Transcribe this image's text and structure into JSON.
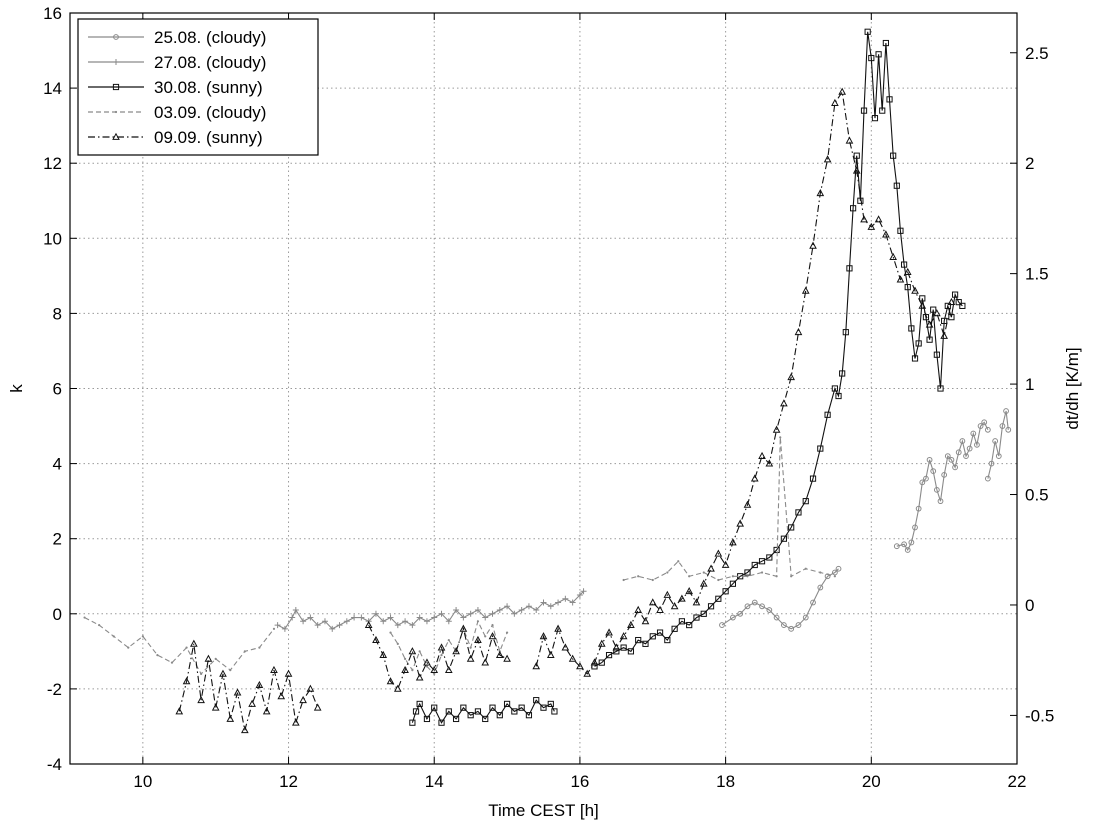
{
  "chart_data": {
    "type": "line",
    "title": "",
    "xlabel": "Time CEST [h]",
    "ylabel": "k",
    "y2label": "dt/dh [K/m]",
    "xlim": [
      9,
      22
    ],
    "ylim": [
      -4,
      16
    ],
    "y2lim": [
      -0.72,
      2.68
    ],
    "xticks": [
      10,
      12,
      14,
      16,
      18,
      20,
      22
    ],
    "yticks": [
      -4,
      -2,
      0,
      2,
      4,
      6,
      8,
      10,
      12,
      14,
      16
    ],
    "y2ticks": [
      -0.5,
      0,
      0.5,
      1,
      1.5,
      2,
      2.5
    ],
    "grid": true,
    "legend_position": "top-left",
    "series": [
      {
        "name": "25.08. (cloudy)",
        "color": "#8a8a8a",
        "marker": "circle",
        "dash": "solid",
        "x": [
          17.95,
          18.1,
          18.2,
          18.3,
          18.4,
          18.5,
          18.6,
          18.7,
          18.8,
          18.9,
          19.0,
          19.1,
          19.2,
          19.3,
          19.4,
          19.5,
          19.55,
          20.25,
          20.35,
          20.45,
          20.5,
          20.55,
          20.6,
          20.65,
          20.7,
          20.75,
          20.8,
          20.85,
          20.9,
          20.95,
          21.0,
          21.05,
          21.1,
          21.15,
          21.2,
          21.25,
          21.3,
          21.35,
          21.4,
          21.45,
          21.5,
          21.55,
          21.6,
          21.55,
          21.6,
          21.65,
          21.7,
          21.75,
          21.8,
          21.85,
          21.88
        ],
        "y": [
          -0.3,
          -0.1,
          0.0,
          0.2,
          0.3,
          0.2,
          0.1,
          -0.1,
          -0.3,
          -0.4,
          -0.3,
          -0.1,
          0.3,
          0.7,
          1.0,
          1.1,
          1.2,
          null,
          1.8,
          1.85,
          1.7,
          1.9,
          2.3,
          2.8,
          3.5,
          3.6,
          4.1,
          3.8,
          3.3,
          3.0,
          3.7,
          4.2,
          4.1,
          3.9,
          4.3,
          4.6,
          4.2,
          4.4,
          4.8,
          4.5,
          5.0,
          5.1,
          4.9,
          null,
          3.6,
          4.0,
          4.6,
          4.2,
          5.0,
          5.4,
          4.9
        ],
        "breaks_before_index": [
          17,
          43
        ]
      },
      {
        "name": "27.08. (cloudy)",
        "color": "#8a8a8a",
        "marker": "plus",
        "dash": "solid",
        "x": [
          11.85,
          11.95,
          12.05,
          12.1,
          12.2,
          12.3,
          12.4,
          12.5,
          12.6,
          12.7,
          12.8,
          12.9,
          13.0,
          13.1,
          13.2,
          13.3,
          13.4,
          13.5,
          13.6,
          13.7,
          13.8,
          13.9,
          14.0,
          14.1,
          14.2,
          14.3,
          14.4,
          14.5,
          14.6,
          14.7,
          14.8,
          14.9,
          15.0,
          15.1,
          15.2,
          15.3,
          15.4,
          15.5,
          15.6,
          15.7,
          15.8,
          15.9,
          16.0,
          16.05
        ],
        "y": [
          -0.3,
          -0.4,
          -0.1,
          0.1,
          -0.2,
          -0.1,
          -0.3,
          -0.2,
          -0.4,
          -0.3,
          -0.2,
          -0.1,
          -0.1,
          -0.2,
          0.0,
          -0.2,
          -0.1,
          -0.3,
          -0.2,
          -0.3,
          -0.1,
          -0.2,
          -0.1,
          0.0,
          -0.2,
          0.1,
          -0.1,
          0.0,
          0.1,
          -0.1,
          0.0,
          0.1,
          0.2,
          0.0,
          0.1,
          0.2,
          0.1,
          0.3,
          0.2,
          0.3,
          0.4,
          0.3,
          0.5,
          0.6
        ]
      },
      {
        "name": "30.08. (sunny)",
        "color": "#111111",
        "marker": "square",
        "dash": "solid",
        "x": [
          13.7,
          13.75,
          13.8,
          13.9,
          14.0,
          14.1,
          14.2,
          14.3,
          14.4,
          14.5,
          14.6,
          14.7,
          14.8,
          14.9,
          15.0,
          15.1,
          15.2,
          15.3,
          15.4,
          15.5,
          15.6,
          15.65,
          16.1,
          16.2,
          16.3,
          16.4,
          16.5,
          16.6,
          16.7,
          16.8,
          16.9,
          17.0,
          17.1,
          17.2,
          17.3,
          17.4,
          17.5,
          17.6,
          17.7,
          17.8,
          17.9,
          18.0,
          18.1,
          18.2,
          18.3,
          18.4,
          18.5,
          18.6,
          18.7,
          18.8,
          18.9,
          19.0,
          19.1,
          19.2,
          19.3,
          19.4,
          19.5,
          19.55,
          19.6,
          19.65,
          19.7,
          19.75,
          19.8,
          19.85,
          19.9,
          19.95,
          20.0,
          20.05,
          20.1,
          20.15,
          20.2,
          20.25,
          20.3,
          20.35,
          20.4,
          20.45,
          20.5,
          20.55,
          20.6,
          20.65,
          20.7,
          20.75,
          20.8,
          20.85,
          20.9,
          20.95,
          21.0,
          21.05,
          21.1,
          21.15,
          21.2,
          21.25
        ],
        "y": [
          -2.9,
          -2.6,
          -2.4,
          -2.8,
          -2.5,
          -2.9,
          -2.6,
          -2.8,
          -2.5,
          -2.7,
          -2.6,
          -2.8,
          -2.5,
          -2.7,
          -2.4,
          -2.6,
          -2.5,
          -2.7,
          -2.3,
          -2.5,
          -2.4,
          -2.6,
          null,
          -1.4,
          -1.3,
          -1.1,
          -1.0,
          -0.9,
          -1.0,
          -0.7,
          -0.8,
          -0.6,
          -0.5,
          -0.7,
          -0.4,
          -0.2,
          -0.3,
          -0.1,
          0.0,
          0.2,
          0.4,
          0.6,
          0.8,
          1.0,
          1.1,
          1.3,
          1.4,
          1.5,
          1.7,
          2.0,
          2.3,
          2.7,
          3.0,
          3.6,
          4.4,
          5.3,
          6.0,
          5.8,
          6.4,
          7.5,
          9.2,
          10.8,
          12.2,
          11.0,
          13.4,
          15.5,
          14.8,
          13.2,
          14.9,
          13.4,
          15.2,
          13.7,
          12.2,
          11.4,
          10.2,
          9.3,
          8.7,
          7.6,
          6.8,
          7.2,
          8.4,
          7.9,
          7.3,
          8.1,
          6.9,
          6.0,
          7.8,
          8.2,
          7.9,
          8.5,
          8.3,
          8.2
        ],
        "breaks_before_index": [
          22
        ]
      },
      {
        "name": "03.09. (cloudy)",
        "color": "#8a8a8a",
        "marker": "dot",
        "dash": "dashed",
        "x": [
          9.2,
          9.4,
          9.6,
          9.8,
          10.0,
          10.2,
          10.4,
          10.6,
          10.8,
          11.0,
          11.2,
          11.4,
          11.6,
          11.8,
          13.3,
          13.4,
          13.5,
          13.6,
          13.7,
          13.8,
          13.9,
          14.0,
          14.1,
          14.2,
          14.3,
          14.4,
          14.5,
          14.6,
          14.7,
          14.8,
          14.9,
          15.0,
          16.4,
          16.6,
          16.8,
          17.0,
          17.2,
          17.35,
          17.5,
          17.7,
          17.9,
          18.1,
          18.3,
          18.5,
          18.7,
          18.75,
          18.9,
          19.1,
          19.3,
          19.5
        ],
        "y": [
          -0.1,
          -0.3,
          -0.6,
          -0.9,
          -0.6,
          -1.1,
          -1.3,
          -0.9,
          -1.6,
          -1.2,
          -1.5,
          -1.0,
          -0.9,
          -0.4,
          null,
          -0.5,
          -0.8,
          -1.2,
          -1.5,
          -1.0,
          -1.4,
          -1.6,
          -1.1,
          -0.7,
          -1.0,
          -0.4,
          -0.9,
          -0.2,
          -0.6,
          -0.3,
          -1.0,
          -0.5,
          null,
          0.9,
          1.0,
          0.9,
          1.1,
          1.4,
          1.0,
          1.1,
          0.9,
          1.0,
          1.0,
          1.1,
          1.0,
          4.7,
          1.0,
          1.2,
          1.1,
          1.0
        ],
        "breaks_before_index": [
          14,
          32
        ]
      },
      {
        "name": "09.09. (sunny)",
        "color": "#111111",
        "marker": "triangle",
        "dash": "dashdot",
        "x": [
          10.5,
          10.6,
          10.7,
          10.8,
          10.9,
          11.0,
          11.1,
          11.2,
          11.3,
          11.4,
          11.5,
          11.6,
          11.7,
          11.8,
          11.9,
          12.0,
          12.1,
          12.2,
          12.3,
          12.4,
          13.0,
          13.1,
          13.2,
          13.3,
          13.4,
          13.5,
          13.6,
          13.7,
          13.8,
          13.9,
          14.0,
          14.1,
          14.2,
          14.3,
          14.4,
          14.5,
          14.6,
          14.7,
          14.8,
          14.9,
          15.0,
          15.3,
          15.4,
          15.5,
          15.6,
          15.7,
          15.8,
          15.9,
          16.0,
          16.1,
          16.2,
          16.3,
          16.4,
          16.5,
          16.6,
          16.7,
          16.8,
          16.9,
          17.0,
          17.1,
          17.2,
          17.3,
          17.4,
          17.5,
          17.6,
          17.7,
          17.8,
          17.9,
          18.0,
          18.1,
          18.2,
          18.3,
          18.4,
          18.5,
          18.6,
          18.7,
          18.8,
          18.9,
          19.0,
          19.1,
          19.2,
          19.3,
          19.4,
          19.5,
          19.6,
          19.7,
          19.8,
          19.9,
          20.0,
          20.1,
          20.2,
          20.3,
          20.4,
          20.5,
          20.6,
          20.7,
          20.8,
          20.9,
          21.0,
          21.1
        ],
        "y": [
          -2.6,
          -1.8,
          -0.8,
          -2.3,
          -1.2,
          -2.5,
          -1.6,
          -2.8,
          -2.1,
          -3.1,
          -2.4,
          -1.9,
          -2.6,
          -1.5,
          -2.2,
          -1.6,
          -2.9,
          -2.3,
          -2.0,
          -2.5,
          null,
          -0.3,
          -0.7,
          -1.1,
          -1.8,
          -2.0,
          -1.5,
          -1.0,
          -1.7,
          -1.3,
          -1.5,
          -0.9,
          -1.5,
          -1.0,
          -0.4,
          -1.2,
          -0.7,
          -1.3,
          -0.6,
          -1.1,
          -1.2,
          null,
          -1.4,
          -0.6,
          -1.1,
          -0.4,
          -0.9,
          -1.2,
          -1.4,
          -1.6,
          -1.3,
          -0.8,
          -0.5,
          -0.9,
          -0.6,
          -0.3,
          0.1,
          -0.2,
          0.3,
          0.1,
          0.5,
          0.2,
          0.4,
          0.6,
          0.3,
          0.8,
          1.2,
          1.6,
          1.3,
          1.9,
          2.4,
          2.9,
          3.6,
          4.2,
          4.0,
          4.9,
          5.6,
          6.3,
          7.5,
          8.6,
          9.8,
          11.2,
          12.1,
          13.6,
          13.9,
          12.6,
          11.8,
          10.5,
          10.3,
          10.5,
          10.1,
          9.5,
          8.9,
          9.1,
          8.6,
          8.2,
          7.7,
          8.0,
          7.4,
          8.3
        ],
        "breaks_before_index": [
          20,
          41
        ]
      }
    ]
  }
}
